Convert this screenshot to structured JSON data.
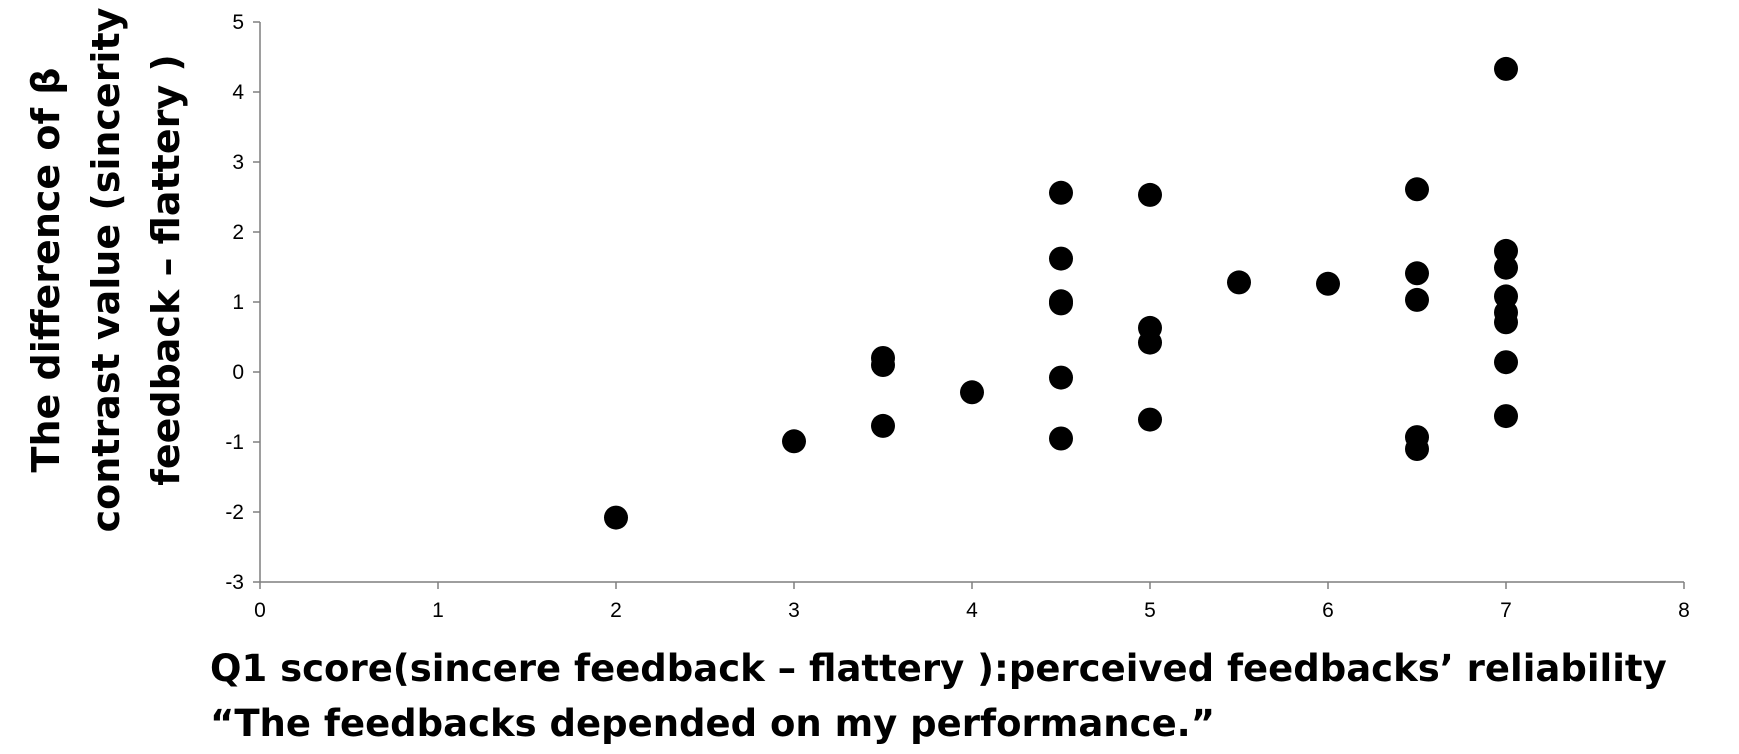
{
  "chart_data": {
    "type": "scatter",
    "xlabel": [
      "Q1 score(sincere feedback – flattery ):perceived feedbacks’ reliability",
      "“The feedbacks depended on my performance.”"
    ],
    "ylabel": [
      "The difference of β",
      "contrast value (sincerity",
      "feedback – flattery )"
    ],
    "xlim": [
      0,
      8
    ],
    "ylim": [
      -3,
      5
    ],
    "x_ticks": [
      "0",
      "1",
      "2",
      "3",
      "4",
      "5",
      "6",
      "7",
      "8"
    ],
    "y_ticks": [
      "5",
      "4",
      "3",
      "2",
      "1",
      "0",
      "-1",
      "-2",
      "-3"
    ],
    "grid": false,
    "legend": "none",
    "marker_color": "#000000",
    "points": [
      {
        "x": 2,
        "y": -2.08
      },
      {
        "x": 3,
        "y": -0.99
      },
      {
        "x": 3.5,
        "y": 0.2
      },
      {
        "x": 3.5,
        "y": 0.1
      },
      {
        "x": 3.5,
        "y": -0.77
      },
      {
        "x": 4,
        "y": -0.29
      },
      {
        "x": 4.5,
        "y": 2.56
      },
      {
        "x": 4.5,
        "y": 1.62
      },
      {
        "x": 4.5,
        "y": 1.01
      },
      {
        "x": 4.5,
        "y": 0.98
      },
      {
        "x": 4.5,
        "y": -0.08
      },
      {
        "x": 4.5,
        "y": -0.95
      },
      {
        "x": 5,
        "y": 2.53
      },
      {
        "x": 5,
        "y": 0.63
      },
      {
        "x": 5,
        "y": 0.42
      },
      {
        "x": 5,
        "y": -0.68
      },
      {
        "x": 5.5,
        "y": 1.28
      },
      {
        "x": 6,
        "y": 1.26
      },
      {
        "x": 6.5,
        "y": 2.61
      },
      {
        "x": 6.5,
        "y": 1.41
      },
      {
        "x": 6.5,
        "y": 1.03
      },
      {
        "x": 6.5,
        "y": -0.93
      },
      {
        "x": 6.5,
        "y": -1.1
      },
      {
        "x": 7,
        "y": 4.33
      },
      {
        "x": 7,
        "y": 1.73
      },
      {
        "x": 7,
        "y": 1.49
      },
      {
        "x": 7,
        "y": 1.08
      },
      {
        "x": 7,
        "y": 0.85
      },
      {
        "x": 7,
        "y": 0.71
      },
      {
        "x": 7,
        "y": 0.14
      },
      {
        "x": 7,
        "y": -0.63
      }
    ]
  }
}
